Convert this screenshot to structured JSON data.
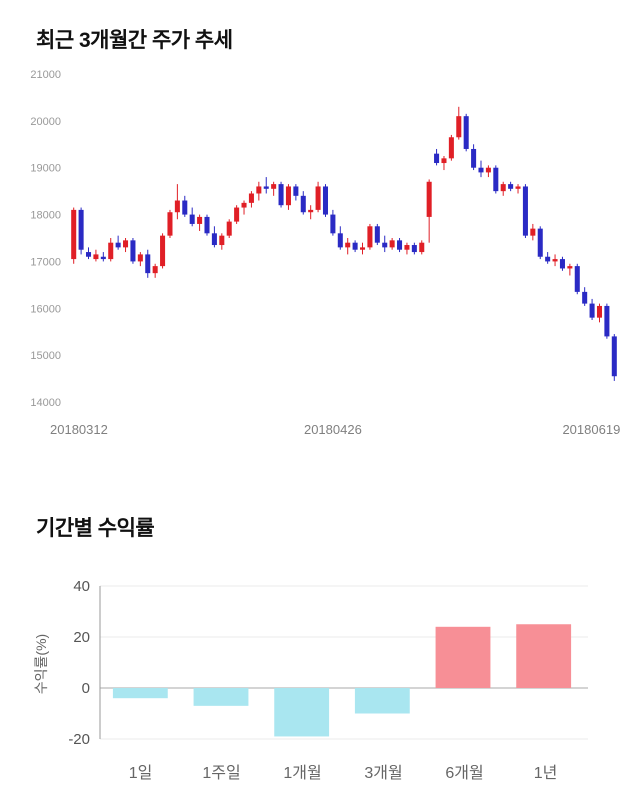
{
  "sections": {
    "price_trend": {
      "title": "최근 3개월간 주가 추세"
    },
    "returns": {
      "title": "기간별 수익률"
    }
  },
  "chart_data": [
    {
      "type": "candlestick",
      "title": "최근 3개월간 주가 추세",
      "ylim": [
        14000,
        21000
      ],
      "yticks": [
        14000,
        15000,
        16000,
        17000,
        18000,
        19000,
        20000,
        21000
      ],
      "x_tick_labels": [
        "20180312",
        "20180426",
        "20180619"
      ],
      "x_tick_indices": [
        0,
        35,
        73
      ],
      "up_color": "#e01f26",
      "down_color": "#2a2ac4",
      "candles": [
        [
          17050,
          18150,
          16950,
          18100
        ],
        [
          18100,
          18150,
          17150,
          17250
        ],
        [
          17200,
          17300,
          17050,
          17100
        ],
        [
          17050,
          17250,
          17000,
          17150
        ],
        [
          17100,
          17200,
          17000,
          17050
        ],
        [
          17050,
          17500,
          17000,
          17400
        ],
        [
          17400,
          17550,
          17250,
          17300
        ],
        [
          17300,
          17500,
          17200,
          17450
        ],
        [
          17450,
          17500,
          16950,
          17000
        ],
        [
          17000,
          17200,
          16900,
          17150
        ],
        [
          17150,
          17250,
          16650,
          16750
        ],
        [
          16750,
          16950,
          16650,
          16900
        ],
        [
          16900,
          17600,
          16850,
          17550
        ],
        [
          17550,
          18100,
          17500,
          18050
        ],
        [
          18050,
          18650,
          17900,
          18300
        ],
        [
          18300,
          18400,
          17950,
          18000
        ],
        [
          18000,
          18150,
          17750,
          17800
        ],
        [
          17800,
          18000,
          17650,
          17950
        ],
        [
          17950,
          18000,
          17550,
          17600
        ],
        [
          17600,
          17750,
          17300,
          17350
        ],
        [
          17350,
          17600,
          17250,
          17550
        ],
        [
          17550,
          17900,
          17500,
          17850
        ],
        [
          17850,
          18200,
          17800,
          18150
        ],
        [
          18150,
          18300,
          18000,
          18250
        ],
        [
          18250,
          18500,
          18150,
          18450
        ],
        [
          18450,
          18700,
          18300,
          18600
        ],
        [
          18600,
          18800,
          18450,
          18550
        ],
        [
          18550,
          18700,
          18400,
          18650
        ],
        [
          18650,
          18700,
          18150,
          18200
        ],
        [
          18200,
          18650,
          18100,
          18600
        ],
        [
          18600,
          18650,
          18300,
          18400
        ],
        [
          18400,
          18500,
          18000,
          18050
        ],
        [
          18050,
          18200,
          17900,
          18100
        ],
        [
          18100,
          18700,
          18050,
          18600
        ],
        [
          18600,
          18650,
          17950,
          18000
        ],
        [
          18000,
          18100,
          17550,
          17600
        ],
        [
          17600,
          17750,
          17250,
          17300
        ],
        [
          17300,
          17500,
          17150,
          17400
        ],
        [
          17400,
          17450,
          17200,
          17250
        ],
        [
          17250,
          17400,
          17150,
          17300
        ],
        [
          17300,
          17800,
          17250,
          17750
        ],
        [
          17750,
          17800,
          17350,
          17400
        ],
        [
          17400,
          17550,
          17200,
          17300
        ],
        [
          17300,
          17500,
          17250,
          17450
        ],
        [
          17450,
          17500,
          17200,
          17250
        ],
        [
          17250,
          17400,
          17150,
          17350
        ],
        [
          17350,
          17400,
          17150,
          17200
        ],
        [
          17200,
          17450,
          17150,
          17400
        ],
        [
          17950,
          18750,
          17400,
          18700
        ],
        [
          19300,
          19400,
          19050,
          19100
        ],
        [
          19100,
          19250,
          18950,
          19200
        ],
        [
          19200,
          19700,
          19150,
          19650
        ],
        [
          19650,
          20300,
          19600,
          20100
        ],
        [
          20100,
          20150,
          19350,
          19400
        ],
        [
          19400,
          19500,
          18950,
          19000
        ],
        [
          19000,
          19150,
          18800,
          18900
        ],
        [
          18900,
          19050,
          18800,
          19000
        ],
        [
          19000,
          19050,
          18450,
          18500
        ],
        [
          18500,
          18700,
          18400,
          18650
        ],
        [
          18650,
          18700,
          18500,
          18550
        ],
        [
          18550,
          18650,
          18450,
          18600
        ],
        [
          18600,
          18650,
          17500,
          17550
        ],
        [
          17550,
          17800,
          17450,
          17700
        ],
        [
          17700,
          17750,
          17050,
          17100
        ],
        [
          17100,
          17200,
          16950,
          17000
        ],
        [
          17000,
          17150,
          16900,
          17050
        ],
        [
          17050,
          17100,
          16800,
          16850
        ],
        [
          16850,
          16950,
          16700,
          16900
        ],
        [
          16900,
          16950,
          16300,
          16350
        ],
        [
          16350,
          16450,
          16050,
          16100
        ],
        [
          16100,
          16200,
          15750,
          15800
        ],
        [
          15800,
          16100,
          15700,
          16050
        ],
        [
          16050,
          16100,
          15350,
          15400
        ],
        [
          15400,
          15450,
          14450,
          14550
        ]
      ]
    },
    {
      "type": "bar",
      "title": "기간별 수익률",
      "categories": [
        "1일",
        "1주일",
        "1개월",
        "3개월",
        "6개월",
        "1년"
      ],
      "values": [
        -4,
        -7,
        -19,
        -10,
        24,
        25
      ],
      "ylabel": "수익률(%)",
      "ylim": [
        -20,
        40
      ],
      "yticks": [
        40,
        20,
        0,
        -20
      ],
      "positive_color": "#f78f96",
      "negative_color": "#a9e6f0",
      "legend": "none",
      "grid": "horizontal-light"
    }
  ]
}
